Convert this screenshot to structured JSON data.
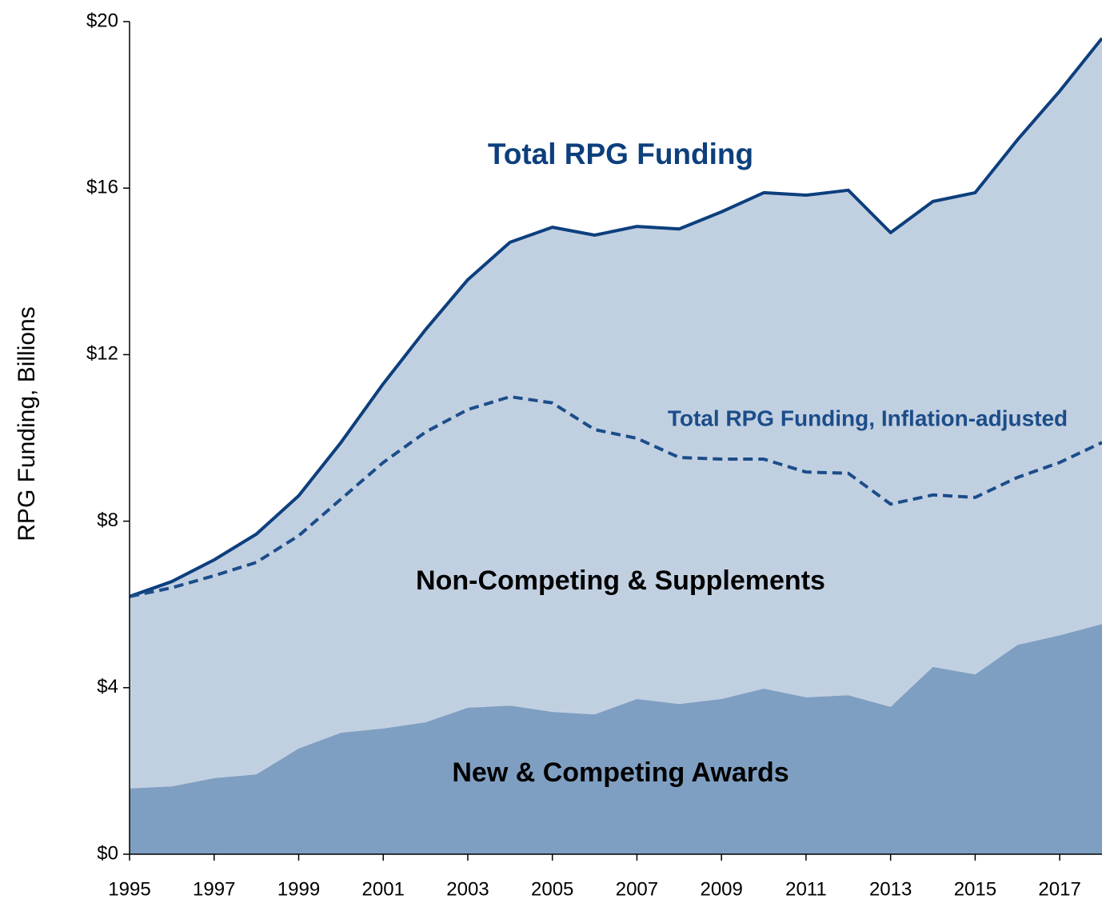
{
  "chart_data": {
    "type": "area",
    "y_axis_label": "RPG Funding, Billions",
    "x": [
      1995,
      1996,
      1997,
      1998,
      1999,
      2000,
      2001,
      2002,
      2003,
      2004,
      2005,
      2006,
      2007,
      2008,
      2009,
      2010,
      2011,
      2012,
      2013,
      2014,
      2015,
      2016,
      2017,
      2018
    ],
    "series": [
      {
        "name": "New & Competing Awards",
        "color": "#7f9fc2",
        "style": "area",
        "values": [
          1.58,
          1.63,
          1.83,
          1.92,
          2.54,
          2.92,
          3.02,
          3.17,
          3.52,
          3.57,
          3.42,
          3.36,
          3.73,
          3.61,
          3.73,
          3.98,
          3.77,
          3.82,
          3.54,
          4.5,
          4.32,
          5.03,
          5.26,
          5.53
        ]
      },
      {
        "name": "Non-Competing & Supplements",
        "color": "#c1d0e1",
        "style": "area",
        "values": [
          4.61,
          4.92,
          5.24,
          5.77,
          6.07,
          6.97,
          8.28,
          9.43,
          10.28,
          11.13,
          11.64,
          11.51,
          11.35,
          11.41,
          11.7,
          11.91,
          12.06,
          12.13,
          11.39,
          11.18,
          11.57,
          12.13,
          13.07,
          14.07
        ]
      },
      {
        "name": "Total RPG Funding",
        "color": "#0d3f7d",
        "style": "line",
        "dashed": false,
        "values": [
          6.19,
          6.55,
          7.07,
          7.69,
          8.61,
          9.89,
          11.3,
          12.6,
          13.8,
          14.7,
          15.06,
          14.87,
          15.08,
          15.02,
          15.43,
          15.89,
          15.83,
          15.95,
          14.93,
          15.68,
          15.89,
          17.16,
          18.33,
          19.6
        ]
      },
      {
        "name": "Total RPG Funding, Inflation-adjusted",
        "color": "#1c4d8a",
        "style": "line",
        "dashed": true,
        "values": [
          6.19,
          6.4,
          6.69,
          7.01,
          7.65,
          8.53,
          9.41,
          10.14,
          10.68,
          10.99,
          10.84,
          10.2,
          9.99,
          9.53,
          9.49,
          9.49,
          9.18,
          9.15,
          8.41,
          8.63,
          8.57,
          9.05,
          9.41,
          9.89
        ]
      }
    ],
    "xlim": [
      1995,
      2018
    ],
    "xticks": [
      1995,
      1997,
      1999,
      2001,
      2003,
      2005,
      2007,
      2009,
      2011,
      2013,
      2015,
      2017
    ],
    "ylim": [
      0,
      20
    ],
    "yticks": [
      {
        "value": 0,
        "label": "$0"
      },
      {
        "value": 4,
        "label": "$4"
      },
      {
        "value": 8,
        "label": "$8"
      },
      {
        "value": 12,
        "label": "$12"
      },
      {
        "value": 16,
        "label": "$16"
      },
      {
        "value": 20,
        "label": "$20"
      }
    ]
  }
}
